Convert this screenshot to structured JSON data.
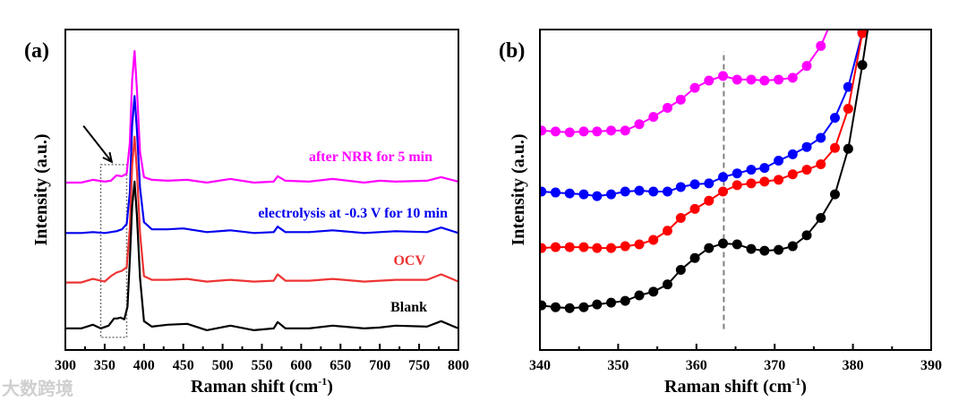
{
  "watermark": "大数跨境",
  "chart_data": [
    {
      "type": "line",
      "panel_label": "(a)",
      "xlabel": "Raman shift (cm-1)",
      "xlabel_main": "Raman shift (cm",
      "xlabel_sup": "-1",
      "xlabel_end": ")",
      "ylabel": "Intensity (a.u.)",
      "xlim": [
        300,
        800
      ],
      "ylim": [
        0,
        356
      ],
      "xticks": [
        300,
        350,
        400,
        450,
        500,
        550,
        600,
        650,
        700,
        750,
        800
      ],
      "minor_step": 25,
      "grid": false,
      "highlight_box": {
        "x": [
          345,
          378
        ],
        "y": [
          14,
          206
        ]
      },
      "arrow": {
        "from": [
          323,
          249
        ],
        "to": [
          359,
          209
        ]
      },
      "series": [
        {
          "name": "after NRR for 5 min",
          "color": "#ff00ff",
          "x": [
            300,
            320,
            335,
            350,
            358,
            365,
            372,
            378,
            382,
            385,
            388,
            391,
            395,
            400,
            410,
            430,
            455,
            480,
            510,
            540,
            565,
            570,
            580,
            610,
            640,
            680,
            700,
            720,
            760,
            778,
            800
          ],
          "y": [
            186,
            186,
            189,
            187,
            188,
            194,
            193,
            196,
            230,
            300,
            332,
            290,
            220,
            192,
            189,
            188,
            189,
            186,
            190,
            186,
            187,
            193,
            188,
            187,
            190,
            186,
            188,
            187,
            188,
            192,
            187
          ]
        },
        {
          "name": "electrolysis at -0.3 V for 10 min",
          "color": "#0000ee",
          "x": [
            300,
            320,
            335,
            350,
            358,
            365,
            372,
            378,
            382,
            385,
            388,
            391,
            395,
            400,
            410,
            430,
            450,
            480,
            510,
            540,
            565,
            570,
            580,
            610,
            640,
            680,
            700,
            720,
            760,
            778,
            800
          ],
          "y": [
            130,
            130,
            131,
            130,
            131,
            132,
            134,
            140,
            175,
            250,
            282,
            245,
            180,
            142,
            134,
            134,
            135,
            131,
            133,
            130,
            131,
            137,
            131,
            131,
            133,
            130,
            131,
            132,
            131,
            136,
            130
          ]
        },
        {
          "name": "OCV",
          "color": "#ee3333",
          "x": [
            300,
            320,
            335,
            350,
            358,
            365,
            372,
            378,
            382,
            385,
            388,
            391,
            395,
            400,
            410,
            430,
            455,
            480,
            510,
            540,
            565,
            570,
            580,
            610,
            640,
            680,
            700,
            720,
            760,
            778,
            800
          ],
          "y": [
            75,
            75,
            79,
            76,
            82,
            86,
            88,
            92,
            135,
            205,
            237,
            200,
            130,
            82,
            78,
            78,
            79,
            76,
            78,
            76,
            77,
            84,
            77,
            77,
            79,
            76,
            77,
            78,
            78,
            84,
            76
          ]
        },
        {
          "name": "Blank",
          "color": "#000000",
          "x": [
            300,
            320,
            335,
            345,
            355,
            362,
            366,
            370,
            375,
            379,
            382,
            385,
            388,
            391,
            395,
            400,
            410,
            430,
            455,
            480,
            510,
            540,
            565,
            570,
            580,
            610,
            640,
            680,
            700,
            720,
            760,
            778,
            800
          ],
          "y": [
            24,
            24,
            28,
            24,
            27,
            35,
            35,
            36,
            34,
            48,
            100,
            160,
            187,
            150,
            80,
            32,
            26,
            28,
            29,
            22,
            27,
            22,
            24,
            31,
            24,
            24,
            27,
            24,
            25,
            27,
            26,
            32,
            24
          ]
        }
      ]
    },
    {
      "type": "line",
      "panel_label": "(b)",
      "xlabel": "Raman shift (cm-1)",
      "xlabel_main": "Raman shift (cm",
      "xlabel_sup": "-1",
      "xlabel_end": ")",
      "ylabel": "Intensity (a.u.)",
      "xlim": [
        340,
        390
      ],
      "ylim": [
        0,
        352
      ],
      "xticks": [
        340,
        350,
        360,
        370,
        380,
        390
      ],
      "minor_step": 5,
      "grid": false,
      "markers": true,
      "reference_line": {
        "x": 363.5,
        "y": [
          23,
          328
        ],
        "style": "dashed",
        "color": "#808080"
      },
      "series": [
        {
          "name": "after NRR for 5 min",
          "color": "#ff00ff",
          "x": [
            340.2,
            342.0,
            343.8,
            345.6,
            347.3,
            349.1,
            350.9,
            352.7,
            354.5,
            356.3,
            358.0,
            359.8,
            361.6,
            363.4,
            365.2,
            367.0,
            368.7,
            370.5,
            372.3,
            374.1,
            375.9
          ],
          "y": [
            241,
            240,
            239,
            240,
            240,
            241,
            241,
            248,
            256,
            266,
            275,
            288,
            296,
            301,
            297,
            297,
            296,
            297,
            299,
            312,
            334
          ],
          "tail": [
            [
              376.8,
              352
            ]
          ]
        },
        {
          "name": "electrolysis at -0.3 V for 10 min",
          "color": "#0000ff",
          "x": [
            340.2,
            342.0,
            343.8,
            345.6,
            347.3,
            349.1,
            350.9,
            352.7,
            354.5,
            356.3,
            358.0,
            359.8,
            361.6,
            363.4,
            365.2,
            367.0,
            368.7,
            370.5,
            372.3,
            374.1,
            375.9,
            377.7,
            379.4,
            381.2
          ],
          "y": [
            174,
            173,
            172,
            171,
            169,
            171,
            174,
            175,
            174,
            174,
            179,
            182,
            183,
            190,
            194,
            198,
            200,
            208,
            215,
            223,
            233,
            255,
            289,
            349
          ],
          "tail": [
            [
              381.4,
              352
            ]
          ]
        },
        {
          "name": "OCV",
          "color": "#ff0000",
          "x": [
            340.2,
            342.0,
            343.8,
            345.6,
            347.3,
            349.1,
            350.9,
            352.7,
            354.5,
            356.3,
            358.0,
            359.8,
            361.6,
            363.4,
            365.2,
            367.0,
            368.7,
            370.5,
            372.3,
            374.1,
            375.9,
            377.7,
            379.4,
            381.2
          ],
          "y": [
            112,
            113,
            113,
            113,
            112,
            112,
            114,
            116,
            121,
            131,
            145,
            155,
            164,
            174,
            181,
            183,
            185,
            187,
            193,
            198,
            204,
            222,
            265,
            348
          ],
          "tail": [
            [
              381.4,
              352
            ]
          ]
        },
        {
          "name": "Blank",
          "color": "#000000",
          "x": [
            340.2,
            342.0,
            343.8,
            345.6,
            347.3,
            349.1,
            350.9,
            352.7,
            354.5,
            356.3,
            358.0,
            359.8,
            361.6,
            363.4,
            365.2,
            367.0,
            368.7,
            370.5,
            372.3,
            374.1,
            375.9,
            377.7,
            379.4,
            381.2
          ],
          "y": [
            49,
            47,
            46,
            47,
            50,
            52,
            54,
            60,
            64,
            72,
            88,
            101,
            112,
            117,
            116,
            111,
            109,
            110,
            114,
            126,
            145,
            171,
            221,
            313
          ],
          "tail": [
            [
              381.9,
              352
            ]
          ]
        }
      ]
    }
  ]
}
